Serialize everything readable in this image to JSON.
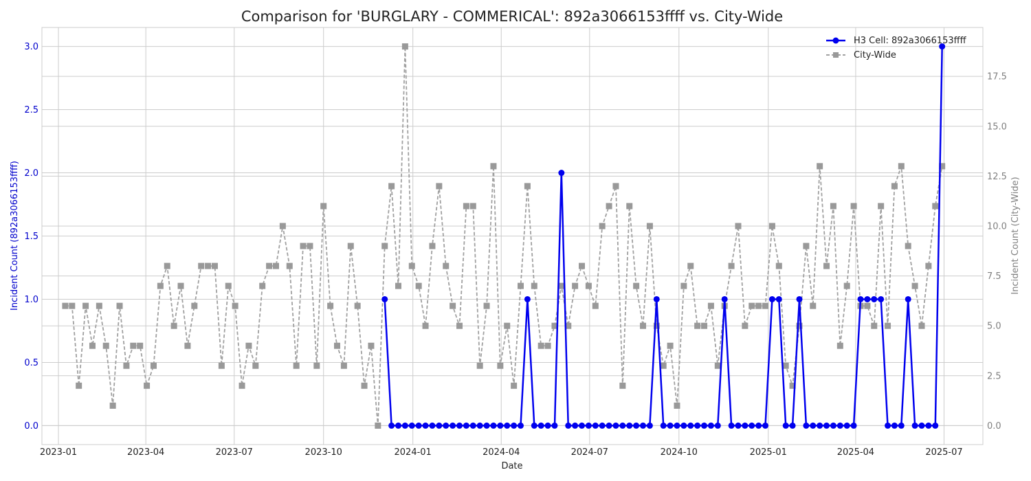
{
  "chart_data": {
    "type": "line",
    "title": "Comparison for 'BURGLARY - COMMERICAL': 892a3066153ffff vs. City-Wide",
    "xlabel": "Date",
    "ylabel_left": "Incident Count (892a3066153ffff)",
    "ylabel_right": "Incident Count (City-Wide)",
    "x_ticks": [
      "2023-01",
      "2023-04",
      "2023-07",
      "2023-10",
      "2024-01",
      "2024-04",
      "2024-07",
      "2024-10",
      "2025-01",
      "2025-04",
      "2025-07"
    ],
    "y_left_ticks": [
      "0.0",
      "0.5",
      "1.0",
      "1.5",
      "2.0",
      "2.5",
      "3.0"
    ],
    "y_right_ticks": [
      "0.0",
      "2.5",
      "5.0",
      "7.5",
      "10.0",
      "12.5",
      "15.0",
      "17.5"
    ],
    "x_range": [
      "2022-12-15",
      "2025-08-10"
    ],
    "y_left_range": [
      -0.15,
      3.15
    ],
    "y_right_range": [
      -0.95,
      19.95
    ],
    "grid": true,
    "legend_position": "top-right",
    "colors": {
      "h3": "#0000ee",
      "city": "#a0a0a0",
      "left_axis": "#0000cc",
      "right_axis": "#808080"
    },
    "series": [
      {
        "name": "City-Wide",
        "axis": "right",
        "style": "dashed-square",
        "x": [
          "2023-01-08",
          "2023-01-15",
          "2023-01-22",
          "2023-01-29",
          "2023-02-05",
          "2023-02-12",
          "2023-02-19",
          "2023-02-26",
          "2023-03-05",
          "2023-03-12",
          "2023-03-19",
          "2023-03-26",
          "2023-04-02",
          "2023-04-09",
          "2023-04-16",
          "2023-04-23",
          "2023-04-30",
          "2023-05-07",
          "2023-05-14",
          "2023-05-21",
          "2023-05-28",
          "2023-06-04",
          "2023-06-11",
          "2023-06-18",
          "2023-06-25",
          "2023-07-02",
          "2023-07-09",
          "2023-07-16",
          "2023-07-23",
          "2023-07-30",
          "2023-08-06",
          "2023-08-13",
          "2023-08-20",
          "2023-08-27",
          "2023-09-03",
          "2023-09-10",
          "2023-09-17",
          "2023-09-24",
          "2023-10-01",
          "2023-10-08",
          "2023-10-15",
          "2023-10-22",
          "2023-10-29",
          "2023-11-05",
          "2023-11-12",
          "2023-11-19",
          "2023-11-26",
          "2023-12-03",
          "2023-12-10",
          "2023-12-17",
          "2023-12-24",
          "2023-12-31",
          "2024-01-07",
          "2024-01-14",
          "2024-01-21",
          "2024-01-28",
          "2024-02-04",
          "2024-02-11",
          "2024-02-18",
          "2024-02-25",
          "2024-03-03",
          "2024-03-10",
          "2024-03-17",
          "2024-03-24",
          "2024-03-31",
          "2024-04-07",
          "2024-04-14",
          "2024-04-21",
          "2024-04-28",
          "2024-05-05",
          "2024-05-12",
          "2024-05-19",
          "2024-05-26",
          "2024-06-02",
          "2024-06-09",
          "2024-06-16",
          "2024-06-23",
          "2024-06-30",
          "2024-07-07",
          "2024-07-14",
          "2024-07-21",
          "2024-07-28",
          "2024-08-04",
          "2024-08-11",
          "2024-08-18",
          "2024-08-25",
          "2024-09-01",
          "2024-09-08",
          "2024-09-15",
          "2024-09-22",
          "2024-09-29",
          "2024-10-06",
          "2024-10-13",
          "2024-10-20",
          "2024-10-27",
          "2024-11-03",
          "2024-11-10",
          "2024-11-17",
          "2024-11-24",
          "2024-12-01",
          "2024-12-08",
          "2024-12-15",
          "2024-12-22",
          "2024-12-29",
          "2025-01-05",
          "2025-01-12",
          "2025-01-19",
          "2025-01-26",
          "2025-02-02",
          "2025-02-09",
          "2025-02-16",
          "2025-02-23",
          "2025-03-02",
          "2025-03-09",
          "2025-03-16",
          "2025-03-23",
          "2025-03-30",
          "2025-04-06",
          "2025-04-13",
          "2025-04-20",
          "2025-04-27",
          "2025-05-04",
          "2025-05-11",
          "2025-05-18",
          "2025-05-25",
          "2025-06-01",
          "2025-06-08",
          "2025-06-15",
          "2025-06-22",
          "2025-06-29"
        ],
        "values": [
          6,
          6,
          2,
          6,
          4,
          6,
          4,
          1,
          6,
          3,
          4,
          4,
          2,
          3,
          7,
          8,
          5,
          7,
          4,
          6,
          8,
          8,
          8,
          3,
          7,
          6,
          2,
          4,
          3,
          7,
          8,
          8,
          10,
          8,
          3,
          9,
          9,
          3,
          11,
          6,
          4,
          3,
          9,
          6,
          2,
          4,
          0,
          9,
          12,
          7,
          19,
          8,
          7,
          5,
          9,
          12,
          8,
          6,
          5,
          11,
          11,
          3,
          6,
          13,
          3,
          5,
          2,
          7,
          12,
          7,
          4,
          4,
          5,
          7,
          5,
          7,
          8,
          7,
          6,
          10,
          11,
          12,
          2,
          11,
          7,
          5,
          10,
          5,
          3,
          4,
          1,
          7,
          8,
          5,
          5,
          6,
          3,
          6,
          8,
          10,
          5,
          6,
          6,
          6,
          10,
          8,
          3,
          2,
          5,
          9,
          6,
          13,
          8,
          11,
          4,
          7,
          11,
          6,
          6,
          5,
          11,
          5,
          12,
          13,
          9,
          7,
          5,
          8,
          11,
          13
        ]
      },
      {
        "name": "H3 Cell: 892a3066153ffff",
        "axis": "left",
        "style": "solid-circle",
        "x": [
          "2023-12-03",
          "2023-12-10",
          "2023-12-17",
          "2023-12-24",
          "2023-12-31",
          "2024-01-07",
          "2024-01-14",
          "2024-01-21",
          "2024-01-28",
          "2024-02-04",
          "2024-02-11",
          "2024-02-18",
          "2024-02-25",
          "2024-03-03",
          "2024-03-10",
          "2024-03-17",
          "2024-03-24",
          "2024-03-31",
          "2024-04-07",
          "2024-04-14",
          "2024-04-21",
          "2024-04-28",
          "2024-05-05",
          "2024-05-12",
          "2024-05-19",
          "2024-05-26",
          "2024-06-02",
          "2024-06-09",
          "2024-06-16",
          "2024-06-23",
          "2024-06-30",
          "2024-07-07",
          "2024-07-14",
          "2024-07-21",
          "2024-07-28",
          "2024-08-04",
          "2024-08-11",
          "2024-08-18",
          "2024-08-25",
          "2024-09-01",
          "2024-09-08",
          "2024-09-15",
          "2024-09-22",
          "2024-09-29",
          "2024-10-06",
          "2024-10-13",
          "2024-10-20",
          "2024-10-27",
          "2024-11-03",
          "2024-11-10",
          "2024-11-17",
          "2024-11-24",
          "2024-12-01",
          "2024-12-08",
          "2024-12-15",
          "2024-12-22",
          "2024-12-29",
          "2025-01-05",
          "2025-01-12",
          "2025-01-19",
          "2025-01-26",
          "2025-02-02",
          "2025-02-09",
          "2025-02-16",
          "2025-02-23",
          "2025-03-02",
          "2025-03-09",
          "2025-03-16",
          "2025-03-23",
          "2025-03-30",
          "2025-04-06",
          "2025-04-13",
          "2025-04-20",
          "2025-04-27",
          "2025-05-04",
          "2025-05-11",
          "2025-05-18",
          "2025-05-25",
          "2025-06-01",
          "2025-06-08",
          "2025-06-15",
          "2025-06-22",
          "2025-06-29"
        ],
        "values": [
          1,
          0,
          0,
          0,
          0,
          0,
          0,
          0,
          0,
          0,
          0,
          0,
          0,
          0,
          0,
          0,
          0,
          0,
          0,
          0,
          0,
          1,
          0,
          0,
          0,
          0,
          2,
          0,
          0,
          0,
          0,
          0,
          0,
          0,
          0,
          0,
          0,
          0,
          0,
          0,
          1,
          0,
          0,
          0,
          0,
          0,
          0,
          0,
          0,
          0,
          1,
          0,
          0,
          0,
          0,
          0,
          0,
          1,
          1,
          0,
          0,
          1,
          0,
          0,
          0,
          0,
          0,
          0,
          0,
          0,
          1,
          1,
          1,
          1,
          0,
          0,
          0,
          1,
          0,
          0,
          0,
          0,
          3
        ]
      }
    ]
  }
}
